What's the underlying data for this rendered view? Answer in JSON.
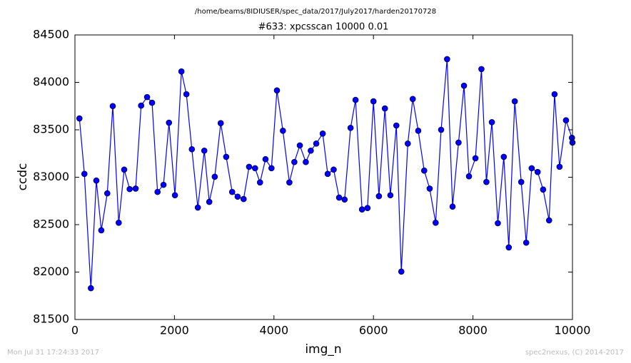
{
  "chart_data": {
    "type": "line",
    "suptitle": "/home/beams/8IDIUSER/spec_data/2017/July2017/harden20170728",
    "title": "#633: xpcsscan 10000 0.01",
    "xlabel": "img_n",
    "ylabel": "ccdc",
    "footer_left": "Mon Jul 31 17:24:33 2017",
    "footer_right": "spec2nexus, (C) 2014-2017",
    "xlim": [
      0,
      10000
    ],
    "xticks": [
      0,
      2000,
      4000,
      6000,
      8000,
      10000
    ],
    "ylim": [
      81500,
      84500
    ],
    "yticks": [
      81500,
      82000,
      82500,
      83000,
      83500,
      84000,
      84500
    ],
    "grid": false,
    "series": [
      {
        "color": "#0000ff",
        "x": [
          90,
          190,
          320,
          430,
          530,
          650,
          760,
          880,
          990,
          1100,
          1220,
          1330,
          1450,
          1550,
          1660,
          1780,
          1890,
          2010,
          2140,
          2240,
          2350,
          2470,
          2600,
          2700,
          2810,
          2930,
          3040,
          3160,
          3270,
          3390,
          3500,
          3620,
          3720,
          3830,
          3950,
          4060,
          4180,
          4310,
          4410,
          4520,
          4640,
          4740,
          4850,
          4980,
          5080,
          5200,
          5310,
          5420,
          5540,
          5640,
          5770,
          5880,
          6000,
          6110,
          6230,
          6340,
          6460,
          6560,
          6690,
          6790,
          6900,
          7020,
          7130,
          7250,
          7360,
          7480,
          7590,
          7710,
          7820,
          7920,
          8050,
          8170,
          8270,
          8380,
          8500,
          8620,
          8720,
          8840,
          8970,
          9070,
          9180,
          9300,
          9410,
          9530,
          9640,
          9740,
          9870,
          9990,
          10000
        ],
        "values": [
          83620,
          83035,
          81830,
          82965,
          82440,
          82830,
          83750,
          82520,
          83080,
          82875,
          82880,
          83755,
          83845,
          83785,
          82845,
          82920,
          83575,
          82810,
          84115,
          83875,
          83295,
          82680,
          83280,
          82740,
          83005,
          83570,
          83215,
          82845,
          82795,
          82770,
          83110,
          83095,
          82945,
          83190,
          83095,
          83915,
          83490,
          82945,
          83160,
          83335,
          83160,
          83280,
          83355,
          83460,
          83035,
          83080,
          82785,
          82765,
          83520,
          83815,
          82660,
          82675,
          83800,
          82800,
          83725,
          82810,
          83545,
          82005,
          83355,
          83825,
          83490,
          83070,
          82880,
          82520,
          83500,
          84245,
          82690,
          83365,
          83965,
          83010,
          83200,
          84140,
          82950,
          83580,
          82515,
          83215,
          82260,
          83800,
          82950,
          82310,
          83095,
          83055,
          82870,
          82545,
          83875,
          83110,
          83600,
          83415,
          83365
        ]
      }
    ]
  }
}
